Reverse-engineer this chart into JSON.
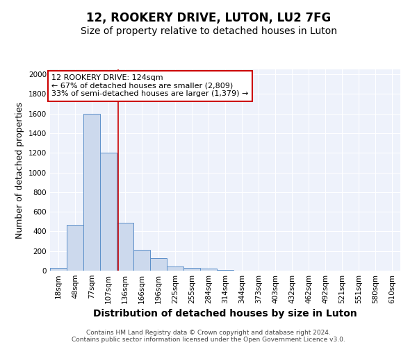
{
  "title": "12, ROOKERY DRIVE, LUTON, LU2 7FG",
  "subtitle": "Size of property relative to detached houses in Luton",
  "xlabel": "Distribution of detached houses by size in Luton",
  "ylabel": "Number of detached properties",
  "categories": [
    "18sqm",
    "48sqm",
    "77sqm",
    "107sqm",
    "136sqm",
    "166sqm",
    "196sqm",
    "225sqm",
    "255sqm",
    "284sqm",
    "314sqm",
    "344sqm",
    "373sqm",
    "403sqm",
    "432sqm",
    "462sqm",
    "492sqm",
    "521sqm",
    "551sqm",
    "580sqm",
    "610sqm"
  ],
  "values": [
    30,
    465,
    1600,
    1200,
    490,
    215,
    125,
    45,
    30,
    20,
    10,
    0,
    0,
    0,
    0,
    0,
    0,
    0,
    0,
    0,
    0
  ],
  "bar_color": "#ccd9ed",
  "bar_edge_color": "#5b8fc9",
  "annotation_text": "12 ROOKERY DRIVE: 124sqm\n← 67% of detached houses are smaller (2,809)\n33% of semi-detached houses are larger (1,379) →",
  "annotation_box_color": "#ffffff",
  "annotation_box_edge": "#cc0000",
  "ylim": [
    0,
    2050
  ],
  "yticks": [
    0,
    200,
    400,
    600,
    800,
    1000,
    1200,
    1400,
    1600,
    1800,
    2000
  ],
  "bg_color": "#eef2fb",
  "grid_color": "#ffffff",
  "footer": "Contains HM Land Registry data © Crown copyright and database right 2024.\nContains public sector information licensed under the Open Government Licence v3.0.",
  "title_fontsize": 12,
  "subtitle_fontsize": 10,
  "xlabel_fontsize": 10,
  "ylabel_fontsize": 9,
  "tick_fontsize": 7.5,
  "annot_fontsize": 8,
  "footer_fontsize": 6.5
}
